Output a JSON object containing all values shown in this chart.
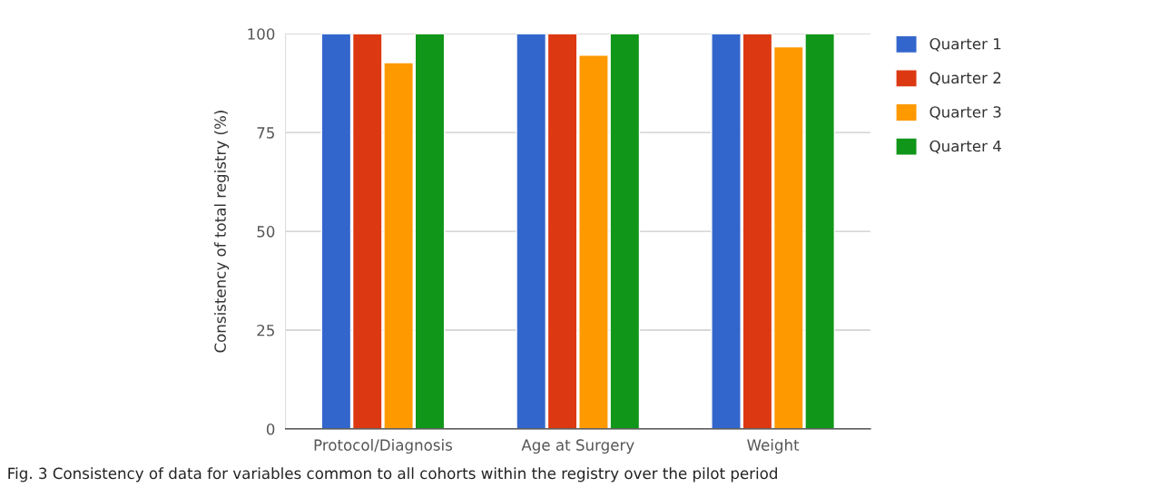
{
  "chart_data": {
    "type": "bar",
    "ylabel": "Consistency of total registry (%)",
    "categories": [
      "Protocol/Diagnosis",
      "Age at Surgery",
      "Weight"
    ],
    "series": [
      {
        "name": "Quarter 1",
        "color": "#3366cc",
        "values": [
          100,
          100,
          100
        ]
      },
      {
        "name": "Quarter 2",
        "color": "#dc3912",
        "values": [
          100,
          100,
          100
        ]
      },
      {
        "name": "Quarter 3",
        "color": "#ff9900",
        "values": [
          92.7,
          94.6,
          96.7
        ]
      },
      {
        "name": "Quarter 4",
        "color": "#109618",
        "values": [
          100,
          100,
          100
        ]
      }
    ],
    "ylim": [
      0,
      100
    ],
    "yticks": [
      0,
      25,
      50,
      75,
      100
    ],
    "grid": "y",
    "legend": "right",
    "annotations": [
      "Fig. 3 Consistency of data for variables common to all cohorts within the registry over the pilot period"
    ]
  }
}
